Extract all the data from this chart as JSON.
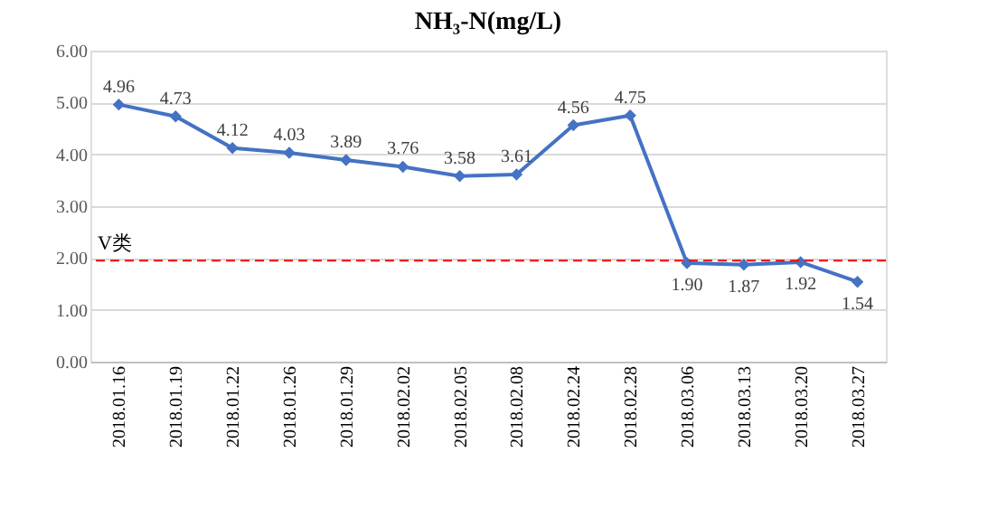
{
  "chart_data": {
    "type": "line",
    "title": "NH₃-N(mg/L)",
    "categories": [
      "2018.01.16",
      "2018.01.19",
      "2018.01.22",
      "2018.01.26",
      "2018.01.29",
      "2018.02.02",
      "2018.02.05",
      "2018.02.08",
      "2018.02.24",
      "2018.02.28",
      "2018.03.06",
      "2018.03.13",
      "2018.03.20",
      "2018.03.27"
    ],
    "series": [
      {
        "color": "#4472c4",
        "values": [
          4.96,
          4.73,
          4.12,
          4.03,
          3.89,
          3.76,
          3.58,
          3.61,
          4.56,
          4.75,
          1.9,
          1.87,
          1.92,
          1.54
        ]
      }
    ],
    "ylim": [
      0,
      6
    ],
    "yticks": [
      {
        "value": 0,
        "label": "0.00"
      },
      {
        "value": 1,
        "label": "1.00"
      },
      {
        "value": 2,
        "label": "2.00"
      },
      {
        "value": 3,
        "label": "3.00"
      },
      {
        "value": 4,
        "label": "4.00"
      },
      {
        "value": 5,
        "label": "5.00"
      },
      {
        "value": 6,
        "label": "6.00"
      }
    ],
    "grid": "y",
    "marker": "diamond",
    "line_style": "solid",
    "value_labels": [
      "4.96",
      "4.73",
      "4.12",
      "4.03",
      "3.89",
      "3.76",
      "3.58",
      "3.61",
      "4.56",
      "4.75",
      "1.90",
      "1.87",
      "1.92",
      "1.54"
    ],
    "ref_lines": [
      {
        "axis": "y",
        "value": 1.95,
        "label": "V类",
        "color": "#ff0000",
        "line_style": "dashed"
      }
    ]
  }
}
